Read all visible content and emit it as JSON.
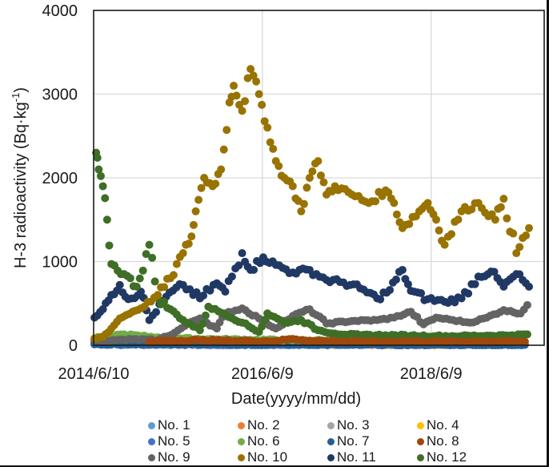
{
  "chart_data": {
    "type": "scatter",
    "title": "",
    "xlabel": "Date(yyyy/mm/dd)",
    "ylabel": "H-3 radioactivity  (Bq·kg⁻¹)",
    "ylabel_main": "H-3 radioactivity  (Bq·kg",
    "ylabel_sup": "-1",
    "ylabel_close": ")",
    "xlim": [
      2014.44,
      2019.78
    ],
    "ylim": [
      0,
      4000
    ],
    "yticks": [
      0,
      1000,
      2000,
      3000,
      4000
    ],
    "ytick_labels": [
      "0",
      "1000",
      "2000",
      "3000",
      "4000"
    ],
    "xticks": [
      2014.44,
      2016.44,
      2018.44
    ],
    "xtick_labels": [
      "2014/6/10",
      "2016/6/9",
      "2018/6/9"
    ],
    "grid": true,
    "legend_position": "bottom",
    "series": [
      {
        "name": "No. 1",
        "color": "#5b9bd5",
        "points": [
          [
            2014.45,
            20
          ],
          [
            2014.7,
            15
          ],
          [
            2015.0,
            10
          ],
          [
            2015.5,
            10
          ],
          [
            2016.0,
            8
          ],
          [
            2016.5,
            8
          ],
          [
            2017.0,
            6
          ],
          [
            2017.5,
            6
          ],
          [
            2018.0,
            5
          ],
          [
            2018.5,
            5
          ],
          [
            2019.0,
            5
          ],
          [
            2019.55,
            5
          ]
        ]
      },
      {
        "name": "No. 2",
        "color": "#ed7d31",
        "points": [
          [
            2014.45,
            30
          ],
          [
            2014.8,
            25
          ],
          [
            2015.2,
            20
          ],
          [
            2015.6,
            18
          ],
          [
            2016.2,
            15
          ],
          [
            2016.8,
            15
          ],
          [
            2017.4,
            12
          ],
          [
            2018.0,
            12
          ],
          [
            2018.6,
            10
          ],
          [
            2019.2,
            10
          ],
          [
            2019.55,
            10
          ]
        ]
      },
      {
        "name": "No. 3",
        "color": "#a5a5a5",
        "points": [
          [
            2014.45,
            40
          ],
          [
            2014.9,
            35
          ],
          [
            2015.3,
            30
          ],
          [
            2015.8,
            28
          ],
          [
            2016.3,
            25
          ],
          [
            2016.9,
            22
          ],
          [
            2017.5,
            20
          ],
          [
            2018.1,
            20
          ],
          [
            2018.7,
            18
          ],
          [
            2019.3,
            18
          ],
          [
            2019.55,
            18
          ]
        ]
      },
      {
        "name": "No. 4",
        "color": "#ffc000",
        "points": [
          [
            2014.45,
            25
          ],
          [
            2014.8,
            20
          ],
          [
            2015.2,
            18
          ],
          [
            2015.7,
            15
          ],
          [
            2016.2,
            15
          ],
          [
            2016.7,
            12
          ],
          [
            2017.2,
            12
          ],
          [
            2017.8,
            10
          ],
          [
            2018.4,
            10
          ],
          [
            2019.0,
            10
          ],
          [
            2019.55,
            10
          ]
        ]
      },
      {
        "name": "No. 5",
        "color": "#4472c4",
        "points": [
          [
            2014.45,
            10
          ],
          [
            2015.0,
            8
          ],
          [
            2015.6,
            8
          ],
          [
            2016.2,
            6
          ],
          [
            2016.8,
            6
          ],
          [
            2017.4,
            5
          ],
          [
            2018.0,
            5
          ],
          [
            2018.6,
            5
          ],
          [
            2019.2,
            5
          ],
          [
            2019.55,
            5
          ]
        ]
      },
      {
        "name": "No. 6",
        "color": "#70ad47",
        "points": [
          [
            2014.45,
            80
          ],
          [
            2014.6,
            110
          ],
          [
            2014.8,
            130
          ],
          [
            2015.0,
            110
          ],
          [
            2015.2,
            95
          ],
          [
            2015.5,
            80
          ],
          [
            2015.9,
            70
          ],
          [
            2016.3,
            65
          ],
          [
            2016.8,
            60
          ],
          [
            2017.3,
            55
          ],
          [
            2017.9,
            50
          ],
          [
            2018.5,
            50
          ],
          [
            2019.0,
            45
          ],
          [
            2019.55,
            45
          ]
        ]
      },
      {
        "name": "No. 7",
        "color": "#255e91",
        "points": [
          [
            2014.45,
            15
          ],
          [
            2014.9,
            15
          ],
          [
            2015.4,
            12
          ],
          [
            2015.9,
            12
          ],
          [
            2016.4,
            10
          ],
          [
            2016.9,
            10
          ],
          [
            2017.4,
            10
          ],
          [
            2017.9,
            8
          ],
          [
            2018.4,
            8
          ],
          [
            2018.9,
            8
          ],
          [
            2019.55,
            8
          ]
        ]
      },
      {
        "name": "No. 8",
        "color": "#9e480e",
        "points": [
          [
            2015.1,
            40
          ],
          [
            2015.4,
            55
          ],
          [
            2015.7,
            60
          ],
          [
            2016.0,
            55
          ],
          [
            2016.3,
            50
          ],
          [
            2016.6,
            50
          ],
          [
            2016.8,
            75
          ],
          [
            2017.0,
            55
          ],
          [
            2017.3,
            45
          ],
          [
            2017.6,
            40
          ],
          [
            2017.9,
            40
          ],
          [
            2018.2,
            45
          ],
          [
            2018.5,
            40
          ],
          [
            2018.8,
            40
          ],
          [
            2019.1,
            45
          ],
          [
            2019.4,
            40
          ],
          [
            2019.55,
            40
          ]
        ]
      },
      {
        "name": "No. 9",
        "color": "#636363",
        "points": [
          [
            2014.45,
            50
          ],
          [
            2014.7,
            60
          ],
          [
            2014.9,
            70
          ],
          [
            2015.2,
            60
          ],
          [
            2015.4,
            150
          ],
          [
            2015.6,
            280
          ],
          [
            2015.7,
            320
          ],
          [
            2015.9,
            200
          ],
          [
            2016.0,
            380
          ],
          [
            2016.2,
            440
          ],
          [
            2016.4,
            320
          ],
          [
            2016.6,
            200
          ],
          [
            2016.8,
            350
          ],
          [
            2017.0,
            430
          ],
          [
            2017.2,
            260
          ],
          [
            2017.5,
            290
          ],
          [
            2017.8,
            300
          ],
          [
            2018.0,
            330
          ],
          [
            2018.2,
            400
          ],
          [
            2018.35,
            250
          ],
          [
            2018.5,
            330
          ],
          [
            2018.7,
            300
          ],
          [
            2018.9,
            270
          ],
          [
            2019.1,
            330
          ],
          [
            2019.3,
            420
          ],
          [
            2019.5,
            380
          ],
          [
            2019.58,
            480
          ]
        ]
      },
      {
        "name": "No. 10",
        "color": "#997300",
        "points": [
          [
            2014.45,
            80
          ],
          [
            2014.55,
            100
          ],
          [
            2014.65,
            200
          ],
          [
            2014.75,
            320
          ],
          [
            2014.9,
            400
          ],
          [
            2015.0,
            440
          ],
          [
            2015.2,
            600
          ],
          [
            2015.35,
            800
          ],
          [
            2015.5,
            1100
          ],
          [
            2015.6,
            1300
          ],
          [
            2015.65,
            1600
          ],
          [
            2015.75,
            2000
          ],
          [
            2015.85,
            1900
          ],
          [
            2015.95,
            2100
          ],
          [
            2016.05,
            2900
          ],
          [
            2016.1,
            3100
          ],
          [
            2016.2,
            2800
          ],
          [
            2016.3,
            3300
          ],
          [
            2016.4,
            3000
          ],
          [
            2016.5,
            2600
          ],
          [
            2016.6,
            2200
          ],
          [
            2016.7,
            2000
          ],
          [
            2016.8,
            1900
          ],
          [
            2016.9,
            1600
          ],
          [
            2017.0,
            2000
          ],
          [
            2017.1,
            2200
          ],
          [
            2017.2,
            1800
          ],
          [
            2017.3,
            1900
          ],
          [
            2017.5,
            1800
          ],
          [
            2017.7,
            1700
          ],
          [
            2017.9,
            1850
          ],
          [
            2018.0,
            1700
          ],
          [
            2018.1,
            1400
          ],
          [
            2018.3,
            1600
          ],
          [
            2018.4,
            1700
          ],
          [
            2018.5,
            1500
          ],
          [
            2018.6,
            1200
          ],
          [
            2018.8,
            1600
          ],
          [
            2019.0,
            1700
          ],
          [
            2019.2,
            1500
          ],
          [
            2019.3,
            1750
          ],
          [
            2019.45,
            1100
          ],
          [
            2019.6,
            1400
          ]
        ]
      },
      {
        "name": "No. 11",
        "color": "#203864",
        "points": [
          [
            2014.45,
            330
          ],
          [
            2014.55,
            430
          ],
          [
            2014.65,
            600
          ],
          [
            2014.75,
            720
          ],
          [
            2014.85,
            550
          ],
          [
            2015.0,
            640
          ],
          [
            2015.1,
            300
          ],
          [
            2015.3,
            580
          ],
          [
            2015.5,
            720
          ],
          [
            2015.7,
            560
          ],
          [
            2015.9,
            740
          ],
          [
            2016.0,
            640
          ],
          [
            2016.2,
            1100
          ],
          [
            2016.3,
            900
          ],
          [
            2016.45,
            1050
          ],
          [
            2016.6,
            960
          ],
          [
            2016.8,
            870
          ],
          [
            2017.0,
            900
          ],
          [
            2017.2,
            780
          ],
          [
            2017.4,
            750
          ],
          [
            2017.6,
            680
          ],
          [
            2017.8,
            560
          ],
          [
            2017.95,
            660
          ],
          [
            2018.1,
            900
          ],
          [
            2018.2,
            650
          ],
          [
            2018.4,
            550
          ],
          [
            2018.6,
            520
          ],
          [
            2018.8,
            560
          ],
          [
            2019.0,
            820
          ],
          [
            2019.15,
            880
          ],
          [
            2019.3,
            700
          ],
          [
            2019.45,
            850
          ],
          [
            2019.6,
            700
          ]
        ]
      },
      {
        "name": "No. 12",
        "color": "#3f6e26",
        "points": [
          [
            2014.47,
            2300
          ],
          [
            2014.5,
            2100
          ],
          [
            2014.55,
            1900
          ],
          [
            2014.6,
            1500
          ],
          [
            2014.65,
            970
          ],
          [
            2014.8,
            850
          ],
          [
            2014.95,
            700
          ],
          [
            2015.1,
            1200
          ],
          [
            2015.2,
            560
          ],
          [
            2015.35,
            430
          ],
          [
            2015.5,
            300
          ],
          [
            2015.7,
            180
          ],
          [
            2015.8,
            460
          ],
          [
            2016.0,
            370
          ],
          [
            2016.2,
            270
          ],
          [
            2016.4,
            160
          ],
          [
            2016.5,
            380
          ],
          [
            2016.7,
            270
          ],
          [
            2016.9,
            300
          ],
          [
            2017.1,
            180
          ],
          [
            2017.3,
            140
          ],
          [
            2017.6,
            120
          ],
          [
            2017.9,
            120
          ],
          [
            2018.2,
            115
          ],
          [
            2018.5,
            110
          ],
          [
            2018.8,
            110
          ],
          [
            2019.1,
            115
          ],
          [
            2019.4,
            120
          ],
          [
            2019.58,
            130
          ]
        ]
      }
    ]
  }
}
